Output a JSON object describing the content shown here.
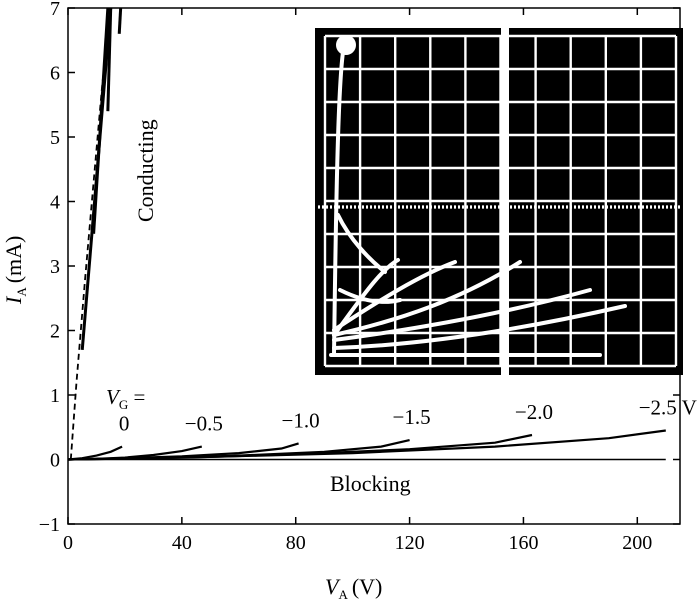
{
  "chart_data": {
    "type": "line",
    "xlabel": {
      "symbol": "V",
      "subscript": "A",
      "unit": "(V)"
    },
    "ylabel": {
      "symbol": "I",
      "subscript": "A",
      "unit": "(mA)"
    },
    "xlim": [
      0,
      215
    ],
    "ylim": [
      -1,
      7
    ],
    "xticks": [
      "0",
      "40",
      "80",
      "120",
      "160",
      "200"
    ],
    "yticks": [
      "−1",
      "0",
      "1",
      "2",
      "3",
      "4",
      "5",
      "6",
      "7"
    ],
    "gate_label": {
      "symbol": "V",
      "subscript": "G",
      "suffix": " ="
    },
    "blocking_curves": [
      {
        "label": "0",
        "x": [
          0,
          5,
          10,
          15,
          19
        ],
        "y": [
          0,
          0.02,
          0.06,
          0.12,
          0.2
        ]
      },
      {
        "label": "−0.5",
        "x": [
          0,
          10,
          20,
          30,
          40,
          47
        ],
        "y": [
          0,
          0.01,
          0.03,
          0.07,
          0.13,
          0.2
        ]
      },
      {
        "label": "−1.0",
        "x": [
          0,
          20,
          40,
          60,
          75,
          81
        ],
        "y": [
          0,
          0.02,
          0.05,
          0.1,
          0.17,
          0.25
        ]
      },
      {
        "label": "−1.5",
        "x": [
          0,
          30,
          60,
          90,
          110,
          120
        ],
        "y": [
          0,
          0.02,
          0.06,
          0.12,
          0.2,
          0.3
        ]
      },
      {
        "label": "−2.0",
        "x": [
          0,
          40,
          80,
          120,
          150,
          163
        ],
        "y": [
          0,
          0.03,
          0.08,
          0.16,
          0.26,
          0.38
        ]
      },
      {
        "label": "−2.5 V",
        "x": [
          0,
          50,
          100,
          150,
          190,
          210
        ],
        "y": [
          0,
          0.04,
          0.1,
          0.2,
          0.33,
          0.45
        ]
      }
    ],
    "conducting_dashed": {
      "x": [
        1,
        3,
        6,
        9,
        12,
        15
      ],
      "y": [
        0,
        1.2,
        2.8,
        4.3,
        5.8,
        7
      ]
    },
    "conducting_solid": [
      {
        "x": [
          5,
          15
        ],
        "y": [
          1.7,
          7
        ]
      },
      {
        "x": [
          9,
          14
        ],
        "y": [
          3.5,
          7
        ]
      },
      {
        "x": [
          14,
          15
        ],
        "y": [
          5.4,
          7
        ]
      },
      {
        "x": [
          18,
          18.5
        ],
        "y": [
          6.6,
          7
        ]
      }
    ],
    "region_labels": {
      "conducting": "Conducting",
      "blocking": "Blocking"
    },
    "inset": {
      "description_type": "oscilloscope-trace",
      "grid_cols": 10,
      "grid_rows": 10
    }
  }
}
